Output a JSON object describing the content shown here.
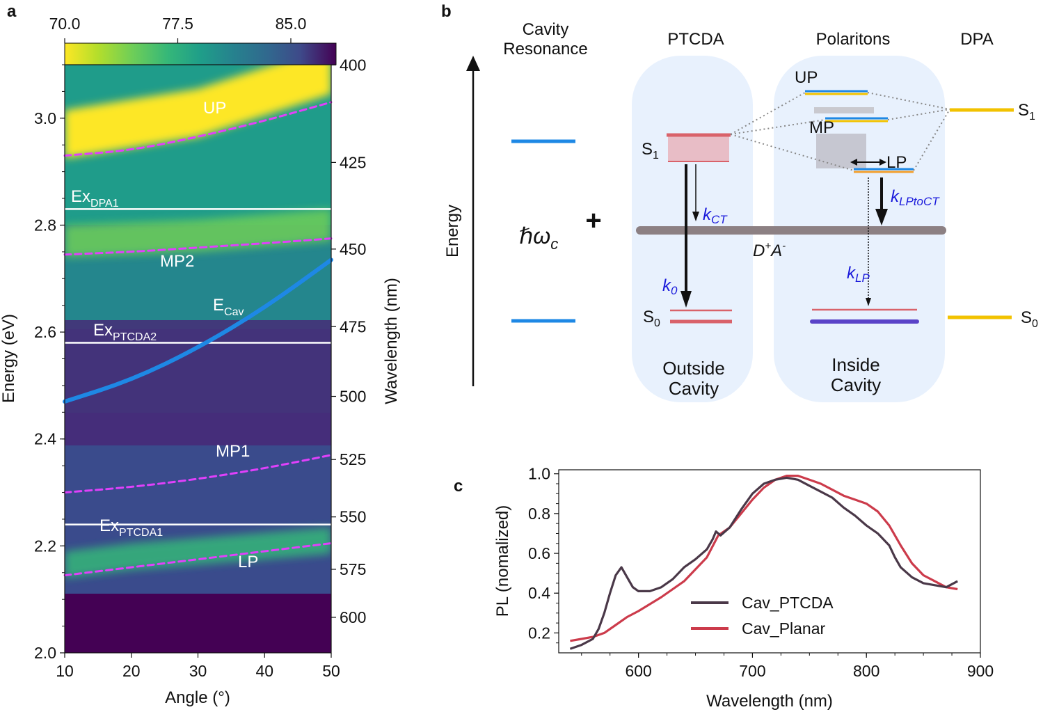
{
  "panels": {
    "a": "a",
    "b": "b",
    "c": "c"
  },
  "colors": {
    "cavity": "#1e88e5",
    "exciton_line": "#ffffff",
    "polariton_dash": "#e040fb",
    "ptcda": "#d9626a",
    "dpa": "#f2c200",
    "ct_band": "#8c8083",
    "cav_ptcda": "#4a3848",
    "cav_planar": "#cc3b4b",
    "rate_label": "#1a1adb"
  },
  "chart_data": [
    {
      "type": "heatmap",
      "xlabel": "Angle (°)",
      "ylabel": "Energy (eV)",
      "y2label": "Wavelength (nm)",
      "xlim": [
        10,
        50
      ],
      "ylim": [
        2.0,
        3.1
      ],
      "xticks": [
        "10",
        "20",
        "30",
        "40",
        "50"
      ],
      "yticks": [
        "2.0",
        "2.2",
        "2.4",
        "2.6",
        "2.8",
        "3.0"
      ],
      "y2ticks": [
        "400",
        "425",
        "450",
        "475",
        "500",
        "525",
        "550",
        "575",
        "600"
      ],
      "colorbar": {
        "ticks": [
          "70.0",
          "77.5",
          "85.0"
        ],
        "range": [
          70.0,
          88.0
        ]
      },
      "hlines": [
        {
          "label": "Ex",
          "sub": "DPA1",
          "y": 2.83
        },
        {
          "label": "Ex",
          "sub": "PTCDA2",
          "y": 2.58
        },
        {
          "label": "Ex",
          "sub": "PTCDA1",
          "y": 2.24
        }
      ],
      "series": [
        {
          "label": "UP",
          "style": "dashed",
          "x": [
            10,
            20,
            30,
            40,
            50
          ],
          "y": [
            2.93,
            2.94,
            2.965,
            2.995,
            3.03
          ]
        },
        {
          "label": "MP2",
          "style": "dashed",
          "x": [
            10,
            20,
            30,
            40,
            50
          ],
          "y": [
            2.745,
            2.75,
            2.758,
            2.766,
            2.775
          ]
        },
        {
          "label": "E",
          "sub": "Cav",
          "style": "solid",
          "x": [
            10,
            20,
            30,
            40,
            50
          ],
          "y": [
            2.47,
            2.51,
            2.57,
            2.645,
            2.735
          ]
        },
        {
          "label": "MP1",
          "style": "dashed",
          "x": [
            10,
            20,
            30,
            40,
            50
          ],
          "y": [
            2.3,
            2.31,
            2.325,
            2.345,
            2.37
          ]
        },
        {
          "label": "LP",
          "style": "dashed",
          "x": [
            10,
            20,
            30,
            40,
            50
          ],
          "y": [
            2.145,
            2.16,
            2.175,
            2.19,
            2.205
          ]
        }
      ],
      "bands": [
        {
          "name": "upper-bright",
          "x": [
            10,
            20,
            30,
            40,
            50
          ],
          "y": [
            2.97,
            2.99,
            3.01,
            3.05,
            3.09
          ],
          "width": 0.09
        },
        {
          "name": "mid-bright",
          "x": [
            10,
            20,
            30,
            40,
            50
          ],
          "y": [
            2.77,
            2.775,
            2.78,
            2.79,
            2.8
          ],
          "width": 0.06
        },
        {
          "name": "low-bright",
          "x": [
            10,
            20,
            30,
            40,
            50
          ],
          "y": [
            2.165,
            2.18,
            2.19,
            2.2,
            2.21
          ],
          "width": 0.05
        }
      ]
    },
    {
      "type": "diagram",
      "axis_label": "Energy",
      "columns": {
        "cavity": "Cavity\nResonance",
        "ptcda": "PTCDA",
        "polaritons": "Polaritons",
        "dpa": "DPA"
      },
      "hbar_omega": "ℏω",
      "hbar_sub": "c",
      "plus": "+",
      "states": {
        "S1": "S",
        "S1_sub": "1",
        "S0": "S",
        "S0_sub": "0",
        "UP": "UP",
        "MP": "MP",
        "LP": "LP",
        "DA": "D",
        "DA_sup1": "+",
        "DA_A": "A",
        "DA_sup2": "-"
      },
      "rates": {
        "k_ct": {
          "k": "k",
          "sub": "CT"
        },
        "k_0": {
          "k": "k",
          "sub": "0"
        },
        "k_lptoct": {
          "k": "k",
          "sub": "LPtoCT"
        },
        "k_lp": {
          "k": "k",
          "sub": "LP"
        }
      },
      "boxes": {
        "outside": "Outside\nCavity",
        "inside": "Inside\nCavity"
      }
    },
    {
      "type": "line",
      "xlabel": "Wavelength (nm)",
      "ylabel": "PL (nomalized)",
      "xlim": [
        530,
        900
      ],
      "ylim": [
        0.1,
        1.02
      ],
      "xticks": [
        "600",
        "700",
        "800",
        "900"
      ],
      "yticks": [
        "0.2",
        "0.4",
        "0.6",
        "0.8",
        "1.0"
      ],
      "legend": "center-bottom",
      "series": [
        {
          "name": "Cav_PTCDA",
          "x": [
            540,
            550,
            560,
            565,
            570,
            575,
            580,
            585,
            590,
            595,
            600,
            610,
            620,
            630,
            640,
            650,
            660,
            665,
            668,
            672,
            680,
            690,
            700,
            710,
            720,
            730,
            740,
            750,
            760,
            770,
            780,
            790,
            800,
            810,
            820,
            825,
            830,
            840,
            850,
            860,
            870,
            880
          ],
          "y": [
            0.12,
            0.14,
            0.17,
            0.22,
            0.3,
            0.4,
            0.49,
            0.53,
            0.48,
            0.43,
            0.41,
            0.41,
            0.43,
            0.47,
            0.53,
            0.57,
            0.62,
            0.67,
            0.71,
            0.69,
            0.73,
            0.82,
            0.9,
            0.95,
            0.97,
            0.98,
            0.97,
            0.94,
            0.91,
            0.88,
            0.83,
            0.79,
            0.74,
            0.7,
            0.64,
            0.58,
            0.53,
            0.48,
            0.45,
            0.44,
            0.43,
            0.46
          ]
        },
        {
          "name": "Cav_Planar",
          "x": [
            540,
            550,
            560,
            570,
            580,
            590,
            600,
            620,
            640,
            660,
            670,
            680,
            690,
            700,
            710,
            720,
            730,
            740,
            750,
            760,
            770,
            780,
            790,
            800,
            810,
            820,
            830,
            840,
            850,
            860,
            870,
            880
          ],
          "y": [
            0.16,
            0.17,
            0.18,
            0.2,
            0.24,
            0.28,
            0.31,
            0.38,
            0.46,
            0.58,
            0.69,
            0.73,
            0.8,
            0.87,
            0.93,
            0.97,
            0.99,
            0.99,
            0.97,
            0.95,
            0.92,
            0.89,
            0.87,
            0.85,
            0.81,
            0.74,
            0.64,
            0.55,
            0.49,
            0.46,
            0.43,
            0.42
          ]
        }
      ]
    }
  ]
}
